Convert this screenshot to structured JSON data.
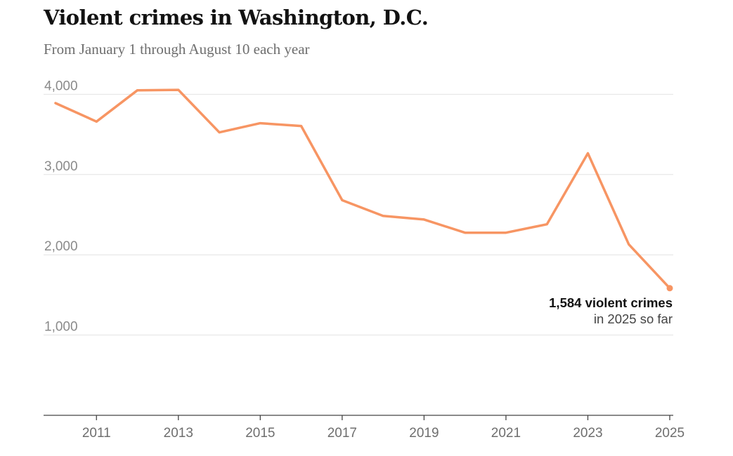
{
  "chart_data": {
    "type": "line",
    "title": "Violent crimes in Washington, D.C.",
    "subtitle": "From January 1 through August 10 each year",
    "x": [
      2010,
      2011,
      2012,
      2013,
      2014,
      2015,
      2016,
      2017,
      2018,
      2019,
      2020,
      2021,
      2022,
      2023,
      2024,
      2025
    ],
    "series": [
      {
        "values": [
          3890,
          3660,
          4050,
          4055,
          3525,
          3640,
          3605,
          2680,
          2485,
          2440,
          2275,
          2275,
          2380,
          3265,
          2130,
          1584
        ],
        "color": "#f79563"
      }
    ],
    "y_ticks": [
      {
        "value": 1000,
        "label": "1,000"
      },
      {
        "value": 2000,
        "label": "2,000"
      },
      {
        "value": 3000,
        "label": "3,000"
      },
      {
        "value": 4000,
        "label": "4,000"
      }
    ],
    "x_ticks": [
      {
        "value": 2011,
        "label": "2011"
      },
      {
        "value": 2013,
        "label": "2013"
      },
      {
        "value": 2015,
        "label": "2015"
      },
      {
        "value": 2017,
        "label": "2017"
      },
      {
        "value": 2019,
        "label": "2019"
      },
      {
        "value": 2021,
        "label": "2021"
      },
      {
        "value": 2023,
        "label": "2023"
      },
      {
        "value": 2025,
        "label": "2025"
      }
    ],
    "ylim": [
      0,
      4100
    ],
    "xlim": [
      2010,
      2025
    ],
    "grid": true,
    "annotation": {
      "x": 2025,
      "y": 1584,
      "line1": "1,584 violent crimes",
      "line2": "in 2025 so far"
    }
  }
}
